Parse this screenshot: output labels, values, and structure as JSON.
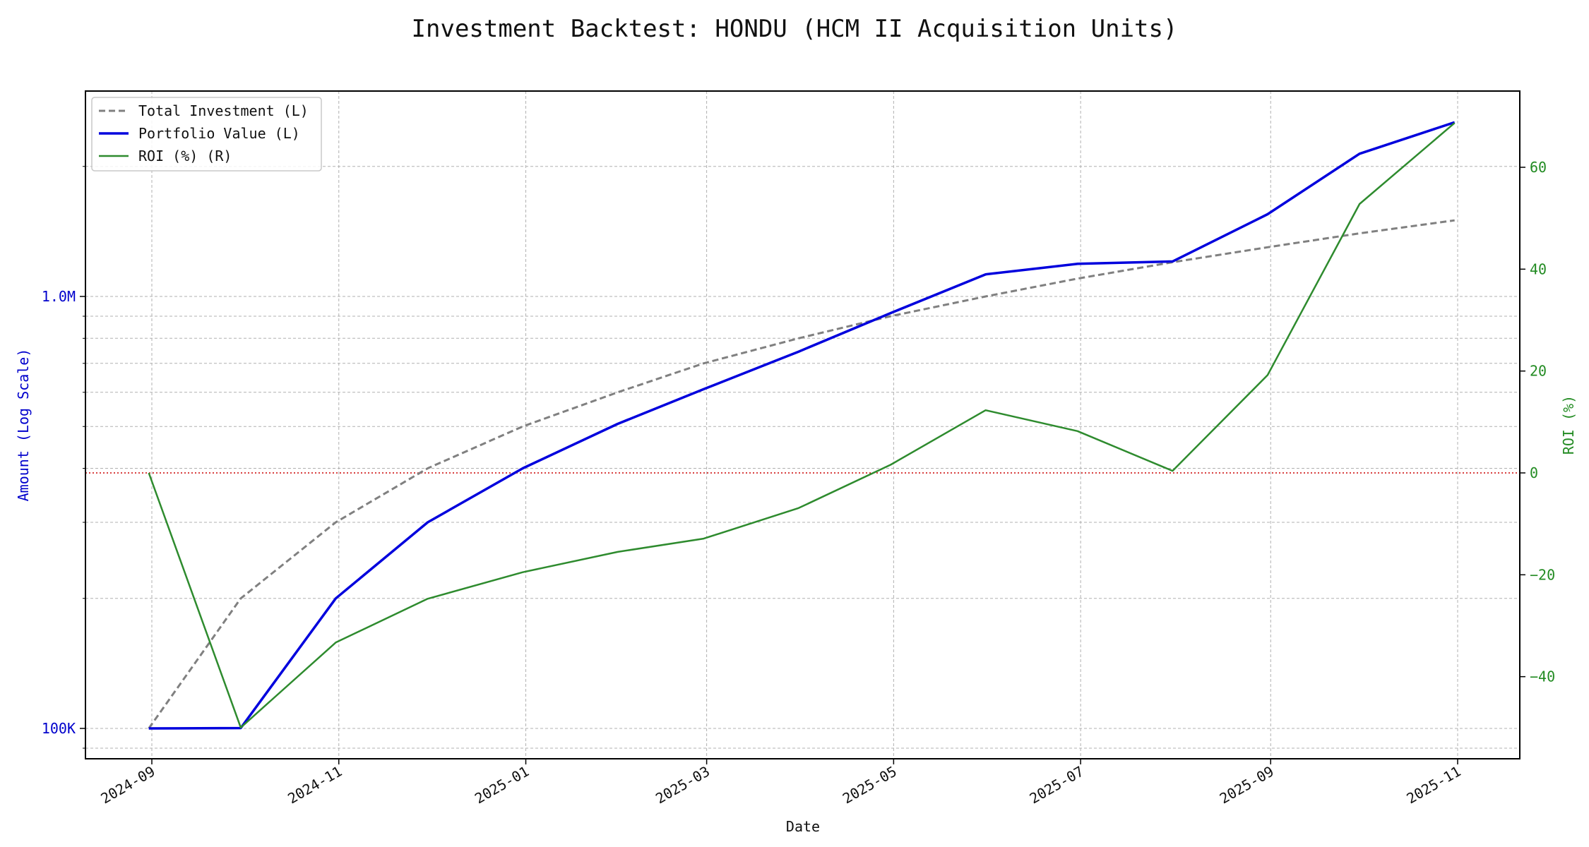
{
  "chart_data": {
    "type": "line",
    "title": "Investment Backtest: HONDU (HCM II Acquisition Units)",
    "xlabel": "Date",
    "ylabel_left": "Amount (Log Scale)",
    "ylabel_right": "ROI (%)",
    "y_left_scale": "log",
    "y_left_ticks": [
      {
        "value": 100000,
        "label": "100K"
      },
      {
        "value": 1000000,
        "label": "1.0M"
      }
    ],
    "y_right_ticks": [
      {
        "value": -40,
        "label": "−40"
      },
      {
        "value": -20,
        "label": "−20"
      },
      {
        "value": 0,
        "label": "0"
      },
      {
        "value": 20,
        "label": "20"
      },
      {
        "value": 40,
        "label": "40"
      },
      {
        "value": 60,
        "label": "60"
      }
    ],
    "x_ticks": [
      "2024-09",
      "2024-11",
      "2025-01",
      "2025-03",
      "2025-05",
      "2025-07",
      "2025-09",
      "2025-11"
    ],
    "x": [
      "2024-08-31",
      "2024-09-30",
      "2024-10-31",
      "2024-11-30",
      "2024-12-31",
      "2025-01-31",
      "2025-02-28",
      "2025-03-31",
      "2025-04-30",
      "2025-05-31",
      "2025-06-30",
      "2025-07-31",
      "2025-08-31",
      "2025-09-30",
      "2025-10-31"
    ],
    "series": [
      {
        "name": "Total Investment (L)",
        "axis": "left",
        "color": "#808080",
        "style": "dashed",
        "values": [
          100000,
          200000,
          300000,
          400000,
          500000,
          600000,
          700000,
          800000,
          900000,
          1000000,
          1100000,
          1200000,
          1300000,
          1400000,
          1500000
        ]
      },
      {
        "name": "Portfolio Value (L)",
        "axis": "left",
        "color": "#0000dd",
        "style": "solid",
        "values": [
          100000,
          100200,
          200000,
          300000,
          400000,
          507000,
          610000,
          745000,
          915000,
          1125000,
          1190000,
          1205000,
          1550000,
          2140000,
          2530000
        ]
      },
      {
        "name": "ROI (%) (R)",
        "axis": "right",
        "color": "#2e8b2e",
        "style": "solid",
        "values": [
          0,
          -50,
          -33.3,
          -24.7,
          -19.5,
          -15.5,
          -12.9,
          -6.9,
          1.6,
          12.3,
          8.2,
          0.4,
          19.2,
          52.8,
          68.7
        ]
      }
    ],
    "reference_line": {
      "axis": "right",
      "value": 0,
      "color": "#cc0000",
      "style": "dotted"
    },
    "grid": true,
    "legend_position": "top-left"
  }
}
